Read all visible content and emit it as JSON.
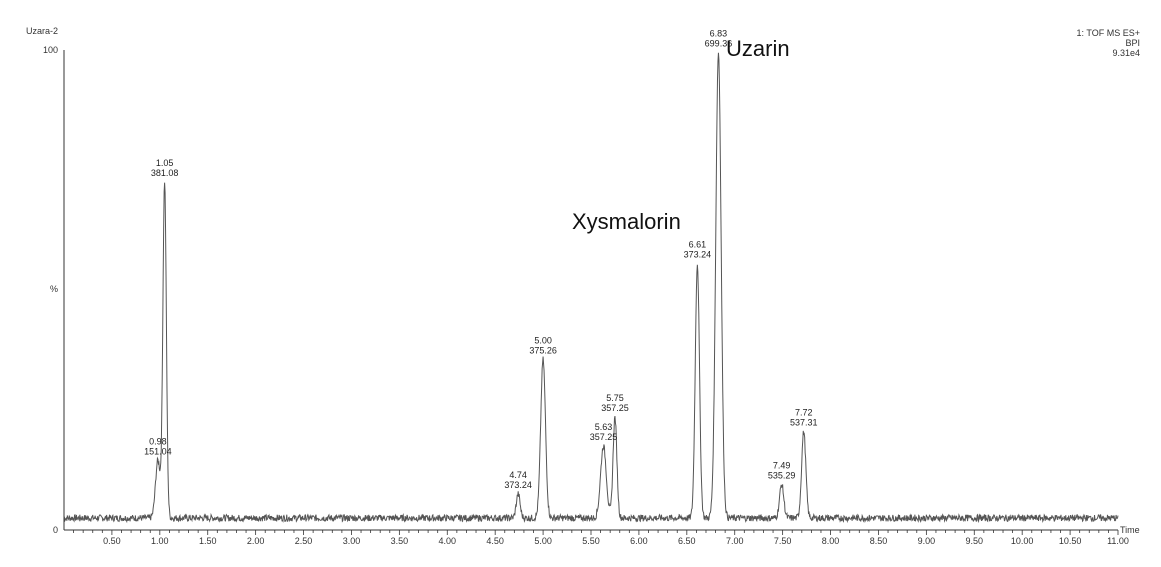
{
  "chart_data": {
    "type": "line",
    "sample": "Uzara-2",
    "detector": {
      "line1": "1: TOF MS ES+",
      "line2": "BPI",
      "line3": "9.31e4"
    },
    "y_top_label": "100",
    "y_zero_label": "0",
    "y_unit_label": "%",
    "xlabel": "Time",
    "xlim": [
      0.0,
      11.0
    ],
    "ylim": [
      0,
      100
    ],
    "x_ticks": [
      "0.50",
      "1.00",
      "1.50",
      "2.00",
      "2.50",
      "3.00",
      "3.50",
      "4.00",
      "4.50",
      "5.00",
      "5.50",
      "6.00",
      "6.50",
      "7.00",
      "7.50",
      "8.00",
      "8.50",
      "9.00",
      "9.50",
      "10.00",
      "10.50",
      "11.00"
    ],
    "peaks": [
      {
        "rt": 0.98,
        "rt_label": "0.98",
        "mz": "151.04",
        "height": 12,
        "width": 0.025
      },
      {
        "rt": 1.05,
        "rt_label": "1.05",
        "mz": "381.08",
        "height": 70,
        "width": 0.018
      },
      {
        "rt": 4.74,
        "rt_label": "4.74",
        "mz": "373.24",
        "height": 5,
        "width": 0.02
      },
      {
        "rt": 5.0,
        "rt_label": "5.00",
        "mz": "375.26",
        "height": 33,
        "width": 0.025
      },
      {
        "rt": 5.63,
        "rt_label": "5.63",
        "mz": "357.25",
        "height": 15,
        "width": 0.03
      },
      {
        "rt": 5.75,
        "rt_label": "5.75",
        "mz": "357.25",
        "height": 21,
        "width": 0.02
      },
      {
        "rt": 6.61,
        "rt_label": "6.61",
        "mz": "373.24",
        "height": 53,
        "width": 0.022
      },
      {
        "rt": 6.83,
        "rt_label": "6.83",
        "mz": "699.36",
        "height": 97,
        "width": 0.028
      },
      {
        "rt": 7.49,
        "rt_label": "7.49",
        "mz": "535.29",
        "height": 7,
        "width": 0.022
      },
      {
        "rt": 7.72,
        "rt_label": "7.72",
        "mz": "537.31",
        "height": 18,
        "width": 0.022
      }
    ],
    "baseline": 2.5,
    "annotations": [
      {
        "text": "Uzarin",
        "near_rt": 6.83
      },
      {
        "text": "Xysmalorin",
        "near_rt": 6.61
      }
    ],
    "grid": false
  }
}
